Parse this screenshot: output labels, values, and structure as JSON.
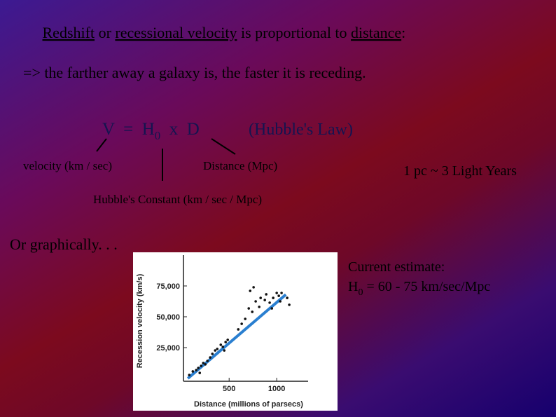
{
  "heading": {
    "parts": [
      "Redshift",
      " or ",
      "recessional velocity",
      " is proportional to ",
      "distance",
      ":"
    ]
  },
  "statement": "=> the farther away a galaxy is, the faster it is receding.",
  "formula": {
    "lhs": "V  =  H",
    "sub": "0",
    "rhs": "  x  D",
    "law": "(Hubble's Law)"
  },
  "labels": {
    "velocity": "velocity (km / sec)",
    "distance": "Distance (Mpc)",
    "constant": "Hubble's Constant (km / sec / Mpc)",
    "parsec": "1 pc ~ 3 Light Years"
  },
  "graph_intro": "Or graphically. . .",
  "estimate": {
    "title": "Current estimate:",
    "symbol": "H",
    "sub": "0",
    "text": " = 60 - 75 km/sec/Mpc"
  },
  "chart_data": {
    "type": "scatter",
    "x_label": "Distance (millions of parsecs)",
    "y_label": "Recession velocity (km/s)",
    "xlim": [
      20,
      1330
    ],
    "ylim": [
      0,
      100000
    ],
    "xticks": [
      500,
      1000
    ],
    "yticks": [
      {
        "value": 25000,
        "label": "25,000"
      },
      {
        "value": 50000,
        "label": "50,000"
      },
      {
        "value": 75000,
        "label": "75,000"
      }
    ],
    "points": {
      "color": "#111111",
      "x": [
        81,
        118,
        154,
        176,
        206,
        228,
        250,
        272,
        191,
        301,
        324,
        353,
        375,
        412,
        434,
        463,
        485,
        449,
        596,
        632,
        669,
        706,
        743,
        779,
        816,
        831,
        875,
        890,
        926,
        949,
        963,
        1000,
        1022,
        1037,
        1051,
        1110,
        1132,
        721,
        757
      ],
      "y": [
        2800,
        5700,
        6800,
        8500,
        10200,
        12500,
        11400,
        14200,
        4500,
        17000,
        19900,
        22700,
        23900,
        27300,
        25600,
        29500,
        31300,
        22700,
        39800,
        44300,
        48300,
        56800,
        54000,
        62500,
        58000,
        65300,
        63600,
        68200,
        61400,
        56800,
        65300,
        69300,
        67000,
        62500,
        69300,
        65300,
        59700,
        71000,
        73900
      ]
    },
    "fit": {
      "color": "#2a7fd0",
      "x": [
        66,
        1096
      ],
      "y": [
        0,
        68000
      ]
    }
  }
}
